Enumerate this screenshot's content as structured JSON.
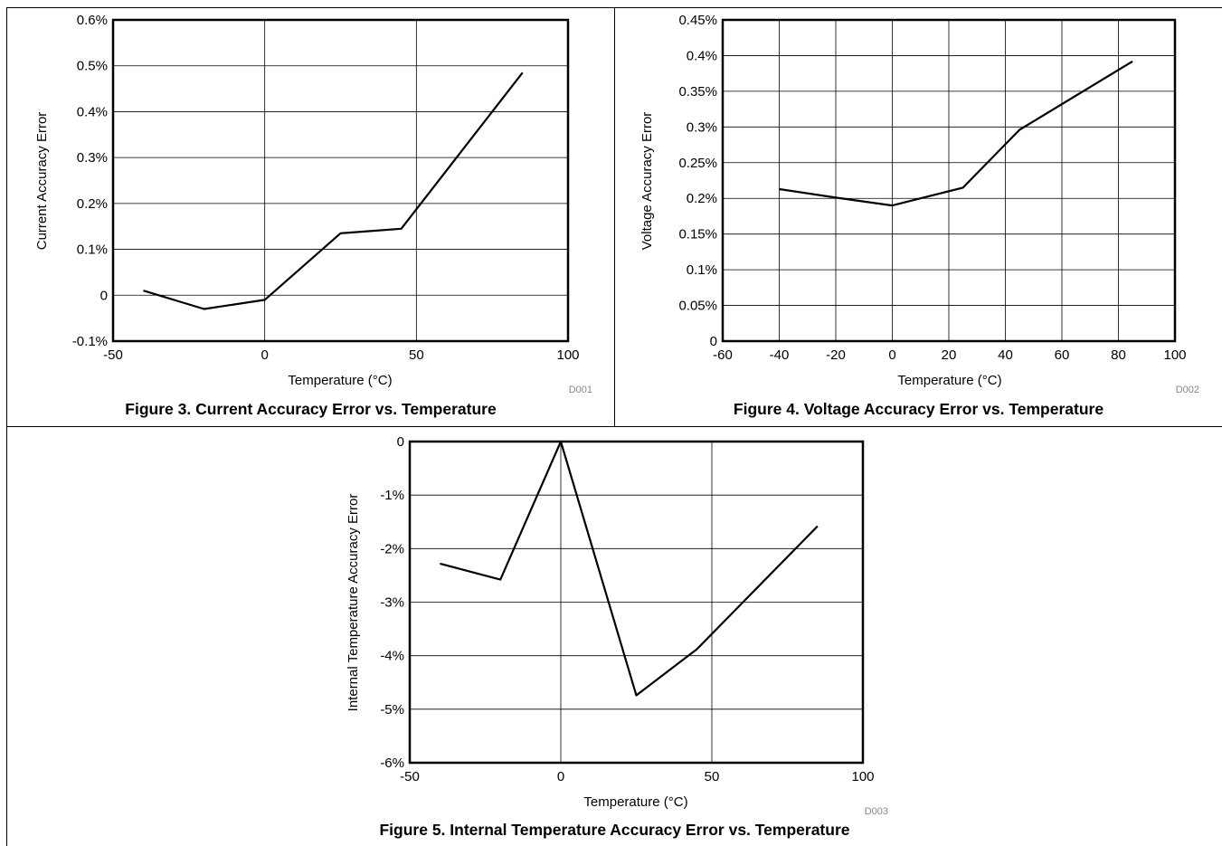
{
  "chart_data": [
    {
      "type": "line",
      "xlabel": "Temperature (°C)",
      "ylabel": "Current Accuracy Error",
      "xlim": [
        -50,
        100
      ],
      "ylim": [
        -0.1,
        0.6
      ],
      "xticks": [
        "-50",
        "0",
        "50",
        "100"
      ],
      "yticks": [
        "-0.1%",
        "0",
        "0.1%",
        "0.2%",
        "0.3%",
        "0.4%",
        "0.5%",
        "0.6%"
      ],
      "grid": true,
      "code": "D001",
      "caption": "Figure 3. Current Accuracy Error vs. Temperature",
      "series": [
        {
          "x": [
            -40,
            -20,
            0,
            25,
            45,
            85
          ],
          "y": [
            0.01,
            -0.03,
            -0.01,
            0.135,
            0.145,
            0.485
          ]
        }
      ]
    },
    {
      "type": "line",
      "xlabel": "Temperature (°C)",
      "ylabel": "Voltage Accuracy Error",
      "xlim": [
        -60,
        100
      ],
      "ylim": [
        0,
        0.45
      ],
      "xticks": [
        "-60",
        "-40",
        "-20",
        "0",
        "20",
        "40",
        "60",
        "80",
        "100"
      ],
      "yticks": [
        "0",
        "0.05%",
        "0.1%",
        "0.15%",
        "0.2%",
        "0.25%",
        "0.3%",
        "0.35%",
        "0.4%",
        "0.45%"
      ],
      "grid": true,
      "code": "D002",
      "caption": "Figure 4. Voltage Accuracy Error vs. Temperature",
      "series": [
        {
          "x": [
            -40,
            -20,
            0,
            25,
            45,
            85
          ],
          "y": [
            0.213,
            0.201,
            0.19,
            0.215,
            0.296,
            0.392
          ]
        }
      ]
    },
    {
      "type": "line",
      "xlabel": "Temperature (°C)",
      "ylabel": "Internal Temperature Accuracy Error",
      "xlim": [
        -50,
        100
      ],
      "ylim": [
        -6,
        0
      ],
      "xticks": [
        "-50",
        "0",
        "50",
        "100"
      ],
      "yticks": [
        "-6%",
        "-5%",
        "-4%",
        "-3%",
        "-2%",
        "-1%",
        "0"
      ],
      "grid": true,
      "code": "D003",
      "caption": "Figure 5. Internal Temperature Accuracy Error vs. Temperature",
      "series": [
        {
          "x": [
            -40,
            -20,
            0,
            25,
            45,
            85
          ],
          "y": [
            -2.28,
            -2.58,
            0,
            -4.74,
            -3.88,
            -1.58
          ]
        }
      ]
    }
  ]
}
